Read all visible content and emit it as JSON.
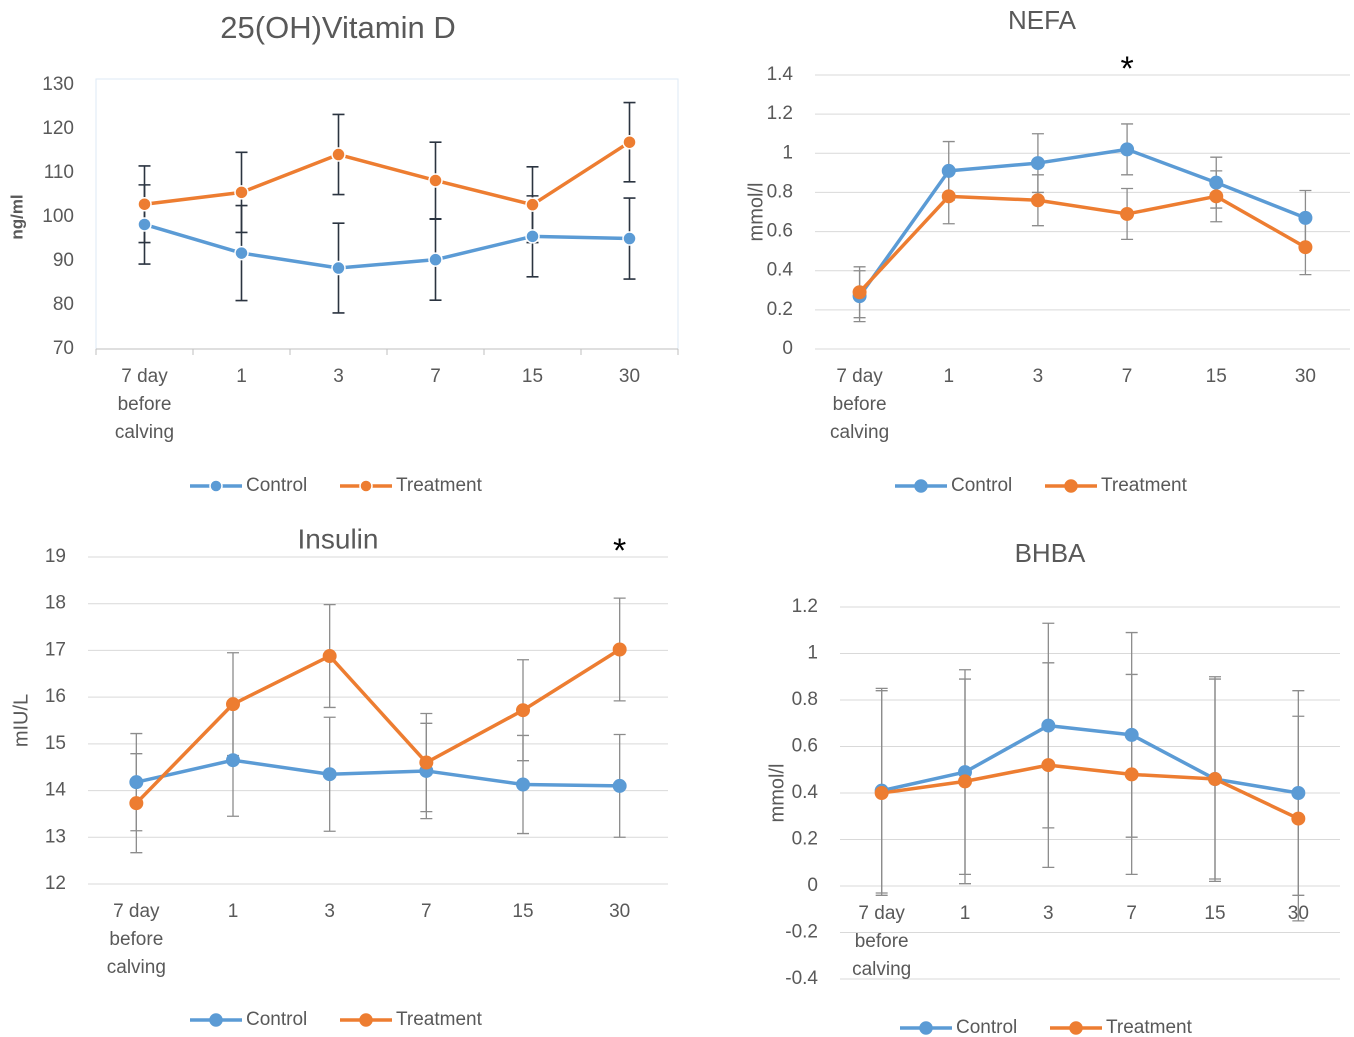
{
  "chart_data": [
    {
      "type": "line",
      "title": "25(OH)Vitamin D",
      "y_label": "ng/ml",
      "categories": [
        "7 day before calving",
        "1",
        "3",
        "7",
        "15",
        "30"
      ],
      "series": [
        {
          "name": "Control",
          "color": "#5b9bd5",
          "values": [
            98.3,
            91.8,
            88.4,
            90.3,
            95.6,
            95.1
          ],
          "errors": [
            9.0,
            10.8,
            10.2,
            9.2,
            9.2,
            9.2
          ]
        },
        {
          "name": "Treatment",
          "color": "#ed7d31",
          "values": [
            102.9,
            105.6,
            114.2,
            108.3,
            102.8,
            117.0
          ],
          "errors": [
            8.7,
            9.1,
            9.1,
            8.7,
            8.6,
            9.0
          ]
        }
      ],
      "ylim": [
        70,
        130
      ],
      "yticks": [
        70,
        80,
        90,
        100,
        110,
        120,
        130
      ],
      "grid": false,
      "legend": "bottom",
      "error_color": "#2b3440"
    },
    {
      "type": "line",
      "title": "NEFA",
      "y_label": "mmol/l",
      "categories": [
        "7 day before calving",
        "1",
        "3",
        "7",
        "15",
        "30"
      ],
      "series": [
        {
          "name": "Control",
          "color": "#5b9bd5",
          "values": [
            0.27,
            0.91,
            0.95,
            1.02,
            0.85,
            0.67
          ],
          "errors": [
            0.13,
            0.15,
            0.15,
            0.13,
            0.13,
            0.14
          ]
        },
        {
          "name": "Treatment",
          "color": "#ed7d31",
          "values": [
            0.29,
            0.78,
            0.76,
            0.69,
            0.78,
            0.52
          ],
          "errors": [
            0.13,
            0.14,
            0.13,
            0.13,
            0.13,
            0.14
          ]
        }
      ],
      "ylim": [
        0,
        1.4
      ],
      "yticks": [
        0,
        0.2,
        0.4,
        0.6,
        0.8,
        1,
        1.2,
        1.4
      ],
      "grid": true,
      "legend": "bottom",
      "error_color": "#8c8c8c",
      "annotations": [
        {
          "text": "*",
          "category": "7"
        }
      ]
    },
    {
      "type": "line",
      "title": "Insulin",
      "y_label": "mIU/L",
      "categories": [
        "7 day before calving",
        "1",
        "3",
        "7",
        "15",
        "30"
      ],
      "series": [
        {
          "name": "Control",
          "color": "#5b9bd5",
          "values": [
            14.18,
            14.65,
            14.35,
            14.42,
            14.13,
            14.1
          ],
          "errors": [
            1.04,
            1.2,
            1.22,
            1.02,
            1.05,
            1.1
          ]
        },
        {
          "name": "Treatment",
          "color": "#ed7d31",
          "values": [
            13.73,
            15.85,
            16.88,
            14.6,
            15.72,
            17.02
          ],
          "errors": [
            1.06,
            1.1,
            1.1,
            1.05,
            1.08,
            1.1
          ]
        }
      ],
      "ylim": [
        12,
        19
      ],
      "yticks": [
        12,
        13,
        14,
        15,
        16,
        17,
        18,
        19
      ],
      "grid": true,
      "legend": "bottom",
      "error_color": "#8c8c8c",
      "annotations": [
        {
          "text": "*",
          "category": "30"
        }
      ]
    },
    {
      "type": "line",
      "title": "BHBA",
      "y_label": "mmol/l",
      "categories": [
        "7 day before calving",
        "1",
        "3",
        "7",
        "15",
        "30"
      ],
      "series": [
        {
          "name": "Control",
          "color": "#5b9bd5",
          "values": [
            0.41,
            0.49,
            0.69,
            0.65,
            0.46,
            0.4
          ],
          "errors": [
            0.44,
            0.44,
            0.44,
            0.44,
            0.43,
            0.44
          ]
        },
        {
          "name": "Treatment",
          "color": "#ed7d31",
          "values": [
            0.4,
            0.45,
            0.52,
            0.48,
            0.46,
            0.29
          ],
          "errors": [
            0.44,
            0.44,
            0.44,
            0.43,
            0.44,
            0.44
          ]
        }
      ],
      "ylim": [
        -0.4,
        1.2
      ],
      "yticks": [
        -0.4,
        -0.2,
        0,
        0.2,
        0.4,
        0.6,
        0.8,
        1,
        1.2
      ],
      "grid": true,
      "legend": "bottom",
      "error_color": "#8c8c8c"
    }
  ]
}
